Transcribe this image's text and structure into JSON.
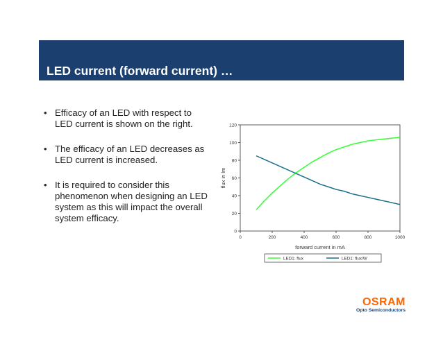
{
  "slide": {
    "title": "LED current (forward current) …",
    "bullets": [
      "Efficacy of an LED with respect to LED current is shown on the right.",
      "The efficacy of an LED decreases as LED current is increased.",
      "It is required to consider this phenomenon when designing an LED system as this will impact the overall system efficacy."
    ],
    "bullet_symbol": "•"
  },
  "logo": {
    "name": "OSRAM",
    "tagline": "Opto Semiconductors",
    "color": "#ff6600",
    "tagline_color": "#1b3f6e"
  },
  "theme": {
    "header_bg": "#1b3f6e"
  },
  "chart_data": {
    "type": "line",
    "title": "",
    "xlabel": "forward current in mA",
    "ylabel": "flux in lm",
    "xlim": [
      0,
      1000
    ],
    "ylim": [
      0,
      120
    ],
    "x_ticks": [
      0,
      200,
      400,
      600,
      800,
      1000
    ],
    "y_ticks": [
      0,
      20,
      40,
      60,
      80,
      100,
      120
    ],
    "grid": false,
    "legend_position": "bottom",
    "series": [
      {
        "name": "LED1: flux",
        "color": "#33ff33",
        "x": [
          100,
          150,
          200,
          250,
          300,
          350,
          400,
          450,
          500,
          550,
          600,
          650,
          700,
          750,
          800,
          850,
          900,
          950,
          1000
        ],
        "y": [
          24,
          34,
          43,
          51,
          59,
          66,
          72,
          78,
          83,
          88,
          92,
          95,
          98,
          100,
          102,
          103,
          104,
          105,
          106
        ]
      },
      {
        "name": "LED1: flux/W",
        "color": "#1a6e8a",
        "x": [
          100,
          150,
          200,
          250,
          300,
          350,
          400,
          450,
          500,
          550,
          600,
          650,
          700,
          750,
          800,
          850,
          900,
          950,
          1000
        ],
        "y": [
          85,
          81,
          77,
          73,
          69,
          65,
          61,
          57,
          53,
          50,
          47,
          45,
          42,
          40,
          38,
          36,
          34,
          32,
          30
        ]
      }
    ]
  }
}
